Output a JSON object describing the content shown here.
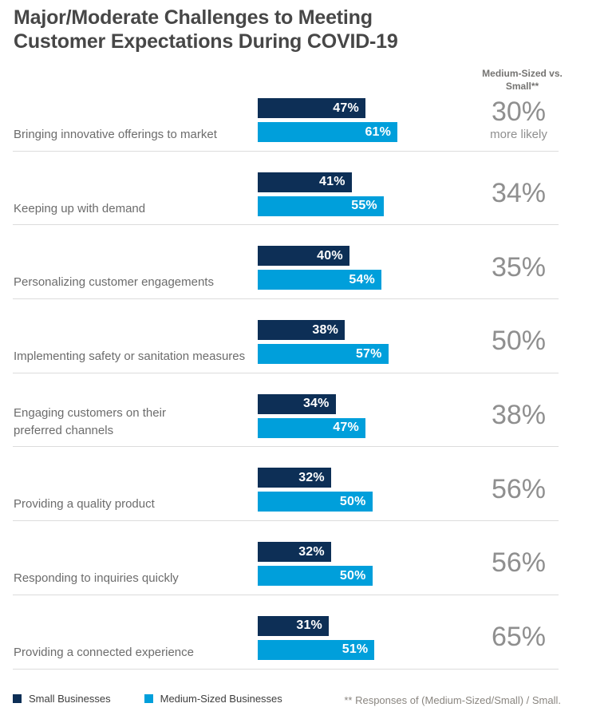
{
  "title": {
    "line1": "Major/Moderate Challenges to Meeting",
    "line2": "Customer Expectations During COVID-19"
  },
  "footnote": "** Responses of (Medium-Sized/Small) / Small.",
  "chart_data": {
    "type": "bar",
    "orientation": "horizontal",
    "title": "Major/Moderate Challenges to Meeting Customer Expectations During COVID-19",
    "xlim": [
      0,
      100
    ],
    "value_suffix": "%",
    "grid": false,
    "legend_position": "bottom",
    "categories": [
      "Bringing innovative offerings to market",
      "Keeping up with demand",
      "Personalizing customer engagements",
      "Implementing safety or sanitation measures",
      "Engaging customers on their\npreferred channels",
      "Providing a quality product",
      "Responding to inquiries quickly",
      "Providing a connected experience"
    ],
    "series": [
      {
        "name": "Small Businesses",
        "color": "#0d2f56",
        "values": [
          47,
          41,
          40,
          38,
          34,
          32,
          32,
          31
        ]
      },
      {
        "name": "Medium-Sized Businesses",
        "color": "#009fdb",
        "values": [
          61,
          55,
          54,
          57,
          47,
          50,
          50,
          51
        ]
      }
    ],
    "ratio_column": {
      "header": "Medium-Sized vs. Small**",
      "values": [
        "30%",
        "34%",
        "35%",
        "50%",
        "38%",
        "56%",
        "56%",
        "65%"
      ],
      "first_row_subtext": "more likely"
    }
  }
}
